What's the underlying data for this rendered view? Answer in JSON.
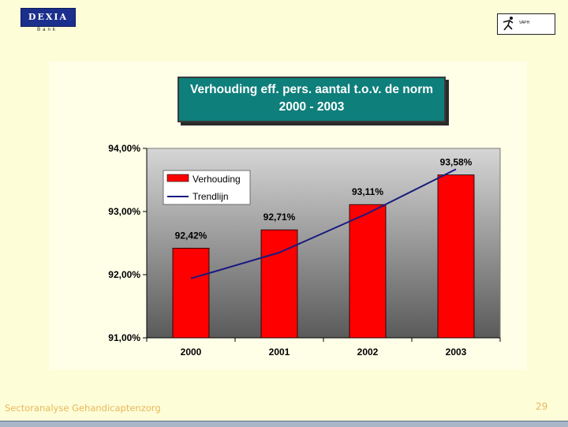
{
  "logos": {
    "left_brand": "DEXIA",
    "left_sub": "Bank",
    "right_brand": "VAPH"
  },
  "title": {
    "line1": "Verhouding eff. pers. aantal t.o.v. de norm",
    "line2": "2000 - 2003"
  },
  "chart_data": {
    "type": "bar",
    "categories": [
      "2000",
      "2001",
      "2002",
      "2003"
    ],
    "series": [
      {
        "name": "Verhouding",
        "type": "bar",
        "color": "#ff0000",
        "values": [
          92.42,
          92.71,
          93.11,
          93.58
        ],
        "labels": [
          "92,42%",
          "92,71%",
          "93,11%",
          "93,58%"
        ]
      },
      {
        "name": "Trendlijn",
        "type": "line",
        "color": "#1a1a80",
        "values": [
          91.94,
          92.35,
          92.97,
          93.67
        ]
      }
    ],
    "ylim": [
      91,
      94
    ],
    "yticks": [
      91,
      92,
      93,
      94
    ],
    "ytick_labels": [
      "91,00%",
      "92,00%",
      "93,00%",
      "94,00%"
    ],
    "xlabel": "",
    "ylabel": "",
    "grid": false,
    "legend_position": "top-left",
    "plot_background": "gradient gray"
  },
  "footer": {
    "text": "Sectoranalyse Gehandicaptenzorg",
    "page_number": "29"
  }
}
